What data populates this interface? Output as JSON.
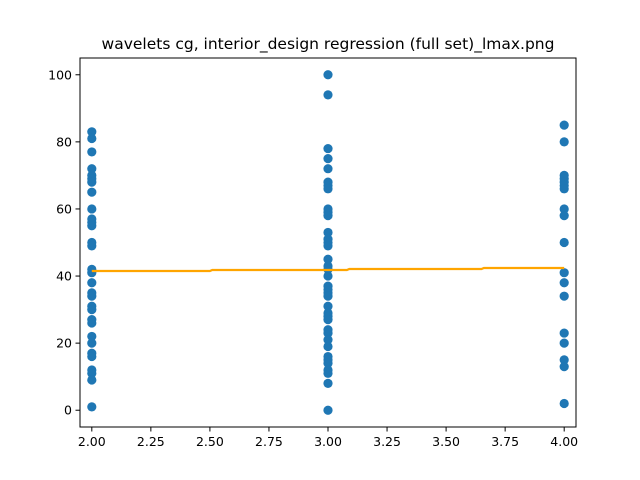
{
  "chart_data": {
    "type": "scatter",
    "title": "wavelets cg, interior_design regression (full set)_lmax.png",
    "xlabel": "",
    "ylabel": "",
    "xlim": [
      1.95,
      4.05
    ],
    "ylim": [
      -5,
      105
    ],
    "grid": false,
    "x_ticks": [
      "2.00",
      "2.25",
      "2.50",
      "2.75",
      "3.00",
      "3.25",
      "3.50",
      "3.75",
      "4.00"
    ],
    "y_ticks": [
      "0",
      "20",
      "40",
      "60",
      "80",
      "100"
    ],
    "series": [
      {
        "type": "scatter",
        "color": "#1f77b4",
        "points": [
          [
            2,
            83
          ],
          [
            2,
            81
          ],
          [
            2,
            77
          ],
          [
            2,
            72
          ],
          [
            2,
            70
          ],
          [
            2,
            69
          ],
          [
            2,
            68
          ],
          [
            2,
            65
          ],
          [
            2,
            60
          ],
          [
            2,
            57
          ],
          [
            2,
            56
          ],
          [
            2,
            55
          ],
          [
            2,
            50
          ],
          [
            2,
            49
          ],
          [
            2,
            42
          ],
          [
            2,
            41
          ],
          [
            2,
            38
          ],
          [
            2,
            35
          ],
          [
            2,
            34
          ],
          [
            2,
            31
          ],
          [
            2,
            30
          ],
          [
            2,
            27
          ],
          [
            2,
            26
          ],
          [
            2,
            22
          ],
          [
            2,
            20
          ],
          [
            2,
            17
          ],
          [
            2,
            16
          ],
          [
            2,
            12
          ],
          [
            2,
            11
          ],
          [
            2,
            9
          ],
          [
            2,
            1
          ],
          [
            3,
            100
          ],
          [
            3,
            94
          ],
          [
            3,
            78
          ],
          [
            3,
            75
          ],
          [
            3,
            72
          ],
          [
            3,
            68
          ],
          [
            3,
            67
          ],
          [
            3,
            66
          ],
          [
            3,
            60
          ],
          [
            3,
            59
          ],
          [
            3,
            58
          ],
          [
            3,
            53
          ],
          [
            3,
            51
          ],
          [
            3,
            50
          ],
          [
            3,
            49
          ],
          [
            3,
            45
          ],
          [
            3,
            43
          ],
          [
            3,
            42
          ],
          [
            3,
            40
          ],
          [
            3,
            37
          ],
          [
            3,
            36
          ],
          [
            3,
            35
          ],
          [
            3,
            34
          ],
          [
            3,
            31
          ],
          [
            3,
            29
          ],
          [
            3,
            28
          ],
          [
            3,
            27
          ],
          [
            3,
            24
          ],
          [
            3,
            23
          ],
          [
            3,
            21
          ],
          [
            3,
            19
          ],
          [
            3,
            16
          ],
          [
            3,
            15
          ],
          [
            3,
            14
          ],
          [
            3,
            12
          ],
          [
            3,
            11
          ],
          [
            3,
            8
          ],
          [
            3,
            0
          ],
          [
            4,
            85
          ],
          [
            4,
            80
          ],
          [
            4,
            70
          ],
          [
            4,
            69
          ],
          [
            4,
            68
          ],
          [
            4,
            67
          ],
          [
            4,
            66
          ],
          [
            4,
            60
          ],
          [
            4,
            58
          ],
          [
            4,
            50
          ],
          [
            4,
            41
          ],
          [
            4,
            38
          ],
          [
            4,
            34
          ],
          [
            4,
            23
          ],
          [
            4,
            20
          ],
          [
            4,
            15
          ],
          [
            4,
            13
          ],
          [
            4,
            2
          ]
        ]
      },
      {
        "type": "line",
        "color": "#ffa500",
        "points": [
          [
            2,
            41.5
          ],
          [
            2.5,
            41.5
          ],
          [
            2.51,
            41.8
          ],
          [
            3.08,
            41.8
          ],
          [
            3.09,
            42.1
          ],
          [
            3.65,
            42.1
          ],
          [
            3.66,
            42.4
          ],
          [
            4,
            42.4
          ]
        ]
      }
    ]
  }
}
